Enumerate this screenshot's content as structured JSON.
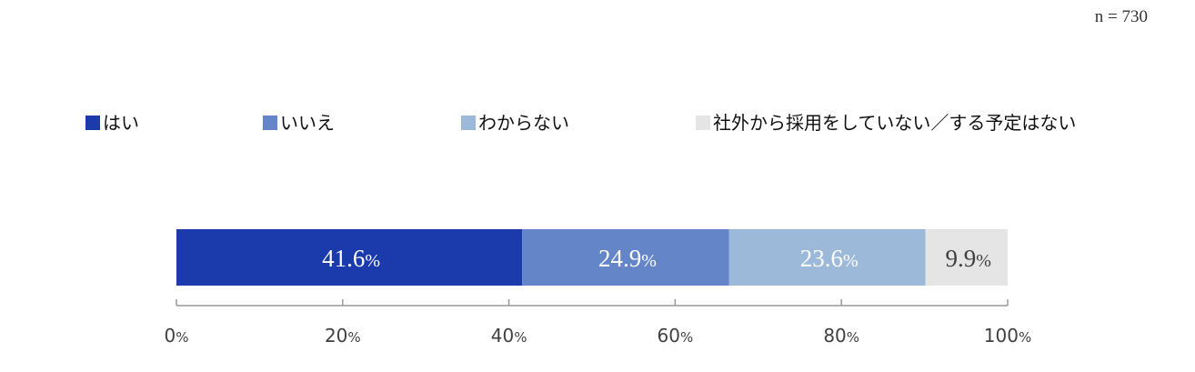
{
  "chart_data": {
    "type": "bar",
    "orientation": "horizontal",
    "stacked": true,
    "sample_note": "n = 730",
    "categories": [
      ""
    ],
    "series": [
      {
        "name": "はい",
        "values": [
          41.6
        ],
        "label": "41.6",
        "color": "#1b3aac",
        "label_color": "#ffffff"
      },
      {
        "name": "いいえ",
        "values": [
          24.9
        ],
        "label": "24.9",
        "color": "#6485c8",
        "label_color": "#ffffff"
      },
      {
        "name": "わからない",
        "values": [
          23.6
        ],
        "label": "23.6",
        "color": "#9cb9da",
        "label_color": "#ffffff"
      },
      {
        "name": "社外から採用をしていない／する予定はない",
        "values": [
          9.9
        ],
        "label": "9.9",
        "color": "#e5e5e5",
        "label_color": "#404040"
      }
    ],
    "value_unit": "%",
    "xlim": [
      0,
      100
    ],
    "x_ticks": [
      0,
      20,
      40,
      60,
      80,
      100
    ],
    "x_tick_unit": "%",
    "legend_position": "top",
    "grid": false
  }
}
